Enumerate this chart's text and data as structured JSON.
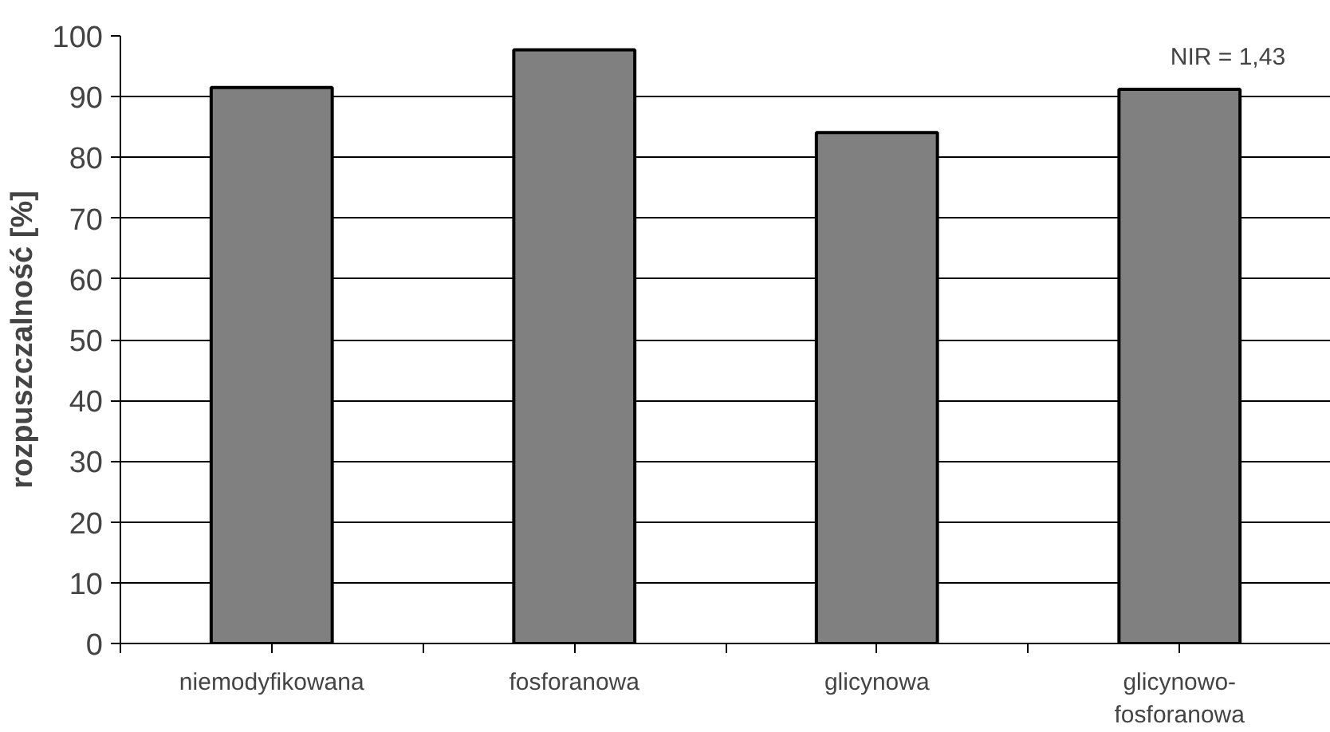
{
  "chart_data": {
    "type": "bar",
    "ylabel": "rozpuszczalność [%]",
    "categories": [
      "niemodyfikowana",
      "fosforanowa",
      "glicynowa",
      "glicynowo-fosforanowa"
    ],
    "values": [
      91.5,
      97.7,
      84.1,
      91.2
    ],
    "color": "#808080",
    "ylim": [
      0,
      100
    ],
    "yticks": [
      0,
      10,
      20,
      30,
      40,
      50,
      60,
      70,
      80,
      90,
      100
    ],
    "grid": "y",
    "annotations": [
      "NIR = 1,43"
    ]
  }
}
